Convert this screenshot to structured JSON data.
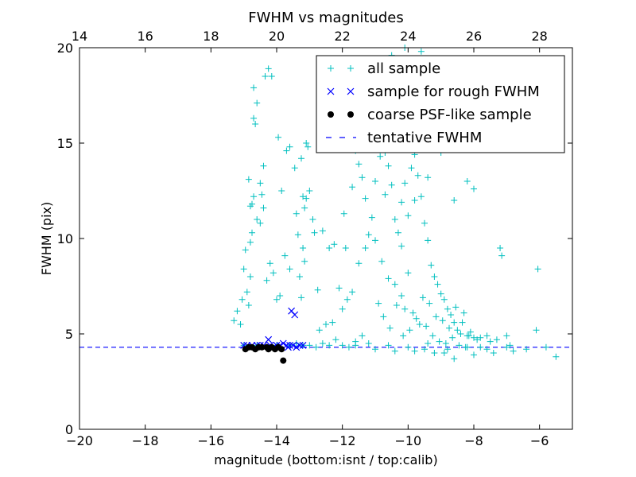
{
  "chart_data": {
    "type": "scatter",
    "title": "FWHM vs magnitudes",
    "xlabel": "magnitude (bottom:isnt / top:calib)",
    "ylabel": "FWHM (pix)",
    "xlim": [
      -20,
      -5
    ],
    "ylim": [
      0,
      20
    ],
    "x_ticks": [
      -20,
      -18,
      -16,
      -14,
      -12,
      -10,
      -8,
      -6
    ],
    "y_ticks": [
      0,
      5,
      10,
      15,
      20
    ],
    "top_axis": {
      "offset": 34,
      "ticks": [
        14,
        16,
        18,
        20,
        22,
        24,
        26,
        28
      ]
    },
    "legend_position": "top-right",
    "tentative_fwhm": 4.3,
    "colors": {
      "all": "#00bfbf",
      "rough": "#0000ff",
      "coarse": "#000000",
      "tentative": "#0000ff"
    },
    "series": [
      {
        "name": "all sample",
        "marker": "plus",
        "points": [
          [
            -15.3,
            5.7
          ],
          [
            -15.2,
            6.2
          ],
          [
            -15.1,
            5.5
          ],
          [
            -15.05,
            6.8
          ],
          [
            -15.0,
            8.4
          ],
          [
            -14.9,
            7.2
          ],
          [
            -14.85,
            6.5
          ],
          [
            -14.8,
            8.0
          ],
          [
            -14.95,
            9.4
          ],
          [
            -14.75,
            11.8
          ],
          [
            -14.7,
            12.2
          ],
          [
            -14.8,
            11.7
          ],
          [
            -14.85,
            13.1
          ],
          [
            -14.75,
            10.3
          ],
          [
            -14.8,
            9.8
          ],
          [
            -14.6,
            11.0
          ],
          [
            -14.5,
            12.9
          ],
          [
            -14.4,
            13.8
          ],
          [
            -14.7,
            16.3
          ],
          [
            -14.6,
            17.1
          ],
          [
            -14.65,
            16.0
          ],
          [
            -14.7,
            17.9
          ],
          [
            -14.35,
            18.5
          ],
          [
            -14.25,
            18.9
          ],
          [
            -14.15,
            18.5
          ],
          [
            -14.45,
            12.3
          ],
          [
            -14.4,
            11.6
          ],
          [
            -14.5,
            10.8
          ],
          [
            -14.2,
            8.7
          ],
          [
            -14.1,
            8.2
          ],
          [
            -14.3,
            7.8
          ],
          [
            -14.0,
            6.8
          ],
          [
            -13.9,
            7.0
          ],
          [
            -13.85,
            12.5
          ],
          [
            -13.95,
            15.3
          ],
          [
            -13.7,
            14.6
          ],
          [
            -13.6,
            14.8
          ],
          [
            -13.75,
            9.1
          ],
          [
            -13.6,
            8.4
          ],
          [
            -13.45,
            13.7
          ],
          [
            -13.25,
            14.2
          ],
          [
            -13.2,
            12.2
          ],
          [
            -13.15,
            11.6
          ],
          [
            -13.1,
            12.1
          ],
          [
            -13.4,
            11.3
          ],
          [
            -13.35,
            10.2
          ],
          [
            -13.2,
            9.5
          ],
          [
            -13.15,
            8.8
          ],
          [
            -13.3,
            8.0
          ],
          [
            -13.25,
            6.9
          ],
          [
            -13.0,
            12.5
          ],
          [
            -12.9,
            11.0
          ],
          [
            -12.85,
            10.3
          ],
          [
            -12.6,
            10.4
          ],
          [
            -12.4,
            9.5
          ],
          [
            -12.25,
            9.7
          ],
          [
            -13.1,
            15.0
          ],
          [
            -13.05,
            14.8
          ],
          [
            -12.75,
            7.3
          ],
          [
            -12.7,
            5.2
          ],
          [
            -12.5,
            5.5
          ],
          [
            -12.3,
            5.6
          ],
          [
            -12.1,
            7.4
          ],
          [
            -11.95,
            11.3
          ],
          [
            -11.9,
            9.5
          ],
          [
            -11.7,
            12.7
          ],
          [
            -11.6,
            14.6
          ],
          [
            -11.5,
            13.9
          ],
          [
            -11.4,
            13.2
          ],
          [
            -11.3,
            12.1
          ],
          [
            -11.2,
            10.2
          ],
          [
            -11.1,
            11.1
          ],
          [
            -11.0,
            13.0
          ],
          [
            -10.85,
            14.3
          ],
          [
            -10.7,
            14.5
          ],
          [
            -10.6,
            13.8
          ],
          [
            -10.5,
            12.8
          ],
          [
            -10.4,
            11.0
          ],
          [
            -10.3,
            10.3
          ],
          [
            -10.2,
            9.6
          ],
          [
            -10.1,
            12.9
          ],
          [
            -10.0,
            11.2
          ],
          [
            -9.9,
            13.7
          ],
          [
            -9.8,
            14.4
          ],
          [
            -9.7,
            13.3
          ],
          [
            -9.6,
            12.2
          ],
          [
            -9.5,
            10.8
          ],
          [
            -9.4,
            9.9
          ],
          [
            -9.3,
            8.6
          ],
          [
            -9.2,
            8.0
          ],
          [
            -9.1,
            7.6
          ],
          [
            -9.0,
            7.1
          ],
          [
            -8.9,
            6.8
          ],
          [
            -8.8,
            6.3
          ],
          [
            -8.7,
            6.0
          ],
          [
            -8.6,
            5.6
          ],
          [
            -8.5,
            5.2
          ],
          [
            -8.4,
            5.0
          ],
          [
            -8.3,
            6.1
          ],
          [
            -8.2,
            4.9
          ],
          [
            -8.1,
            5.1
          ],
          [
            -8.0,
            4.8
          ],
          [
            -7.9,
            4.7
          ],
          [
            -7.8,
            4.8
          ],
          [
            -7.6,
            4.9
          ],
          [
            -7.5,
            4.6
          ],
          [
            -7.3,
            4.7
          ],
          [
            -7.2,
            9.5
          ],
          [
            -7.15,
            9.1
          ],
          [
            -7.0,
            4.9
          ],
          [
            -6.9,
            4.4
          ],
          [
            -6.1,
            5.2
          ],
          [
            -6.05,
            8.4
          ],
          [
            -5.5,
            3.8
          ],
          [
            -10.8,
            8.8
          ],
          [
            -10.6,
            7.9
          ],
          [
            -10.4,
            7.6
          ],
          [
            -10.2,
            7.0
          ],
          [
            -10.1,
            6.3
          ],
          [
            -10.0,
            8.2
          ],
          [
            -9.85,
            6.1
          ],
          [
            -9.75,
            5.8
          ],
          [
            -9.65,
            5.5
          ],
          [
            -9.55,
            6.9
          ],
          [
            -9.45,
            5.4
          ],
          [
            -9.35,
            6.6
          ],
          [
            -9.25,
            4.9
          ],
          [
            -9.15,
            5.9
          ],
          [
            -9.05,
            4.6
          ],
          [
            -8.95,
            5.7
          ],
          [
            -8.85,
            4.5
          ],
          [
            -8.75,
            5.3
          ],
          [
            -8.65,
            4.8
          ],
          [
            -8.55,
            6.4
          ],
          [
            -8.45,
            4.4
          ],
          [
            -8.35,
            5.6
          ],
          [
            -8.25,
            4.3
          ],
          [
            -8.15,
            4.9
          ],
          [
            -9.6,
            19.8
          ],
          [
            -9.0,
            18.6
          ],
          [
            -8.4,
            15.9
          ],
          [
            -8.5,
            14.8
          ],
          [
            -8.2,
            13.0
          ],
          [
            -8.0,
            12.6
          ],
          [
            -8.6,
            12.0
          ],
          [
            -10.1,
            20.0
          ],
          [
            -10.5,
            19.6
          ],
          [
            -10.9,
            16.8
          ],
          [
            -11.2,
            15.8
          ],
          [
            -10.3,
            17.3
          ],
          [
            -9.3,
            17.9
          ],
          [
            -9.1,
            16.5
          ],
          [
            -8.8,
            15.3
          ],
          [
            -9.0,
            14.5
          ],
          [
            -9.4,
            13.2
          ],
          [
            -9.8,
            12.0
          ],
          [
            -10.2,
            11.9
          ],
          [
            -10.7,
            12.3
          ],
          [
            -11.0,
            9.9
          ],
          [
            -11.3,
            9.5
          ],
          [
            -11.5,
            8.7
          ],
          [
            -11.7,
            7.2
          ],
          [
            -11.85,
            6.8
          ],
          [
            -12.0,
            6.3
          ],
          [
            -10.9,
            6.6
          ],
          [
            -10.75,
            5.9
          ],
          [
            -10.55,
            5.3
          ],
          [
            -10.35,
            6.5
          ],
          [
            -10.15,
            4.9
          ],
          [
            -9.95,
            5.2
          ],
          [
            -11.4,
            4.9
          ],
          [
            -11.6,
            4.6
          ],
          [
            -12.2,
            4.7
          ],
          [
            -12.6,
            4.5
          ],
          [
            -13.0,
            4.4
          ],
          [
            -13.6,
            4.4
          ],
          [
            -14.0,
            4.4
          ],
          [
            -14.6,
            4.4
          ],
          [
            -15.0,
            4.4
          ],
          [
            -12.4,
            4.4
          ],
          [
            -11.8,
            4.3
          ],
          [
            -11.2,
            4.5
          ],
          [
            -10.6,
            4.4
          ],
          [
            -10.0,
            4.3
          ],
          [
            -9.4,
            4.5
          ],
          [
            -8.8,
            4.2
          ],
          [
            -8.2,
            4.3
          ],
          [
            -7.6,
            4.2
          ],
          [
            -7.0,
            4.3
          ],
          [
            -6.4,
            4.2
          ],
          [
            -5.8,
            4.3
          ],
          [
            -6.8,
            4.1
          ],
          [
            -7.4,
            4.0
          ],
          [
            -8.0,
            3.9
          ],
          [
            -8.6,
            3.7
          ],
          [
            -9.2,
            4.0
          ],
          [
            -9.8,
            4.1
          ],
          [
            -10.4,
            4.1
          ],
          [
            -11.0,
            4.2
          ],
          [
            -11.6,
            4.4
          ],
          [
            -12.8,
            4.3
          ],
          [
            -13.2,
            4.4
          ],
          [
            -13.4,
            4.5
          ],
          [
            -12.0,
            4.4
          ],
          [
            -7.8,
            4.3
          ],
          [
            -8.9,
            4.0
          ],
          [
            -9.5,
            4.2
          ]
        ]
      },
      {
        "name": "sample for rough FWHM",
        "marker": "x",
        "points": [
          [
            -15.0,
            4.4
          ],
          [
            -14.9,
            4.4
          ],
          [
            -14.75,
            4.4
          ],
          [
            -14.6,
            4.4
          ],
          [
            -14.5,
            4.4
          ],
          [
            -14.4,
            4.4
          ],
          [
            -14.25,
            4.7
          ],
          [
            -14.2,
            4.4
          ],
          [
            -14.1,
            4.3
          ],
          [
            -14.0,
            4.4
          ],
          [
            -13.9,
            4.4
          ],
          [
            -13.8,
            4.5
          ],
          [
            -13.7,
            4.4
          ],
          [
            -13.55,
            6.2
          ],
          [
            -13.45,
            6.0
          ],
          [
            -13.5,
            4.4
          ],
          [
            -13.4,
            4.3
          ],
          [
            -13.3,
            4.4
          ],
          [
            -13.2,
            4.4
          ],
          [
            -13.6,
            4.4
          ],
          [
            -13.65,
            4.3
          ]
        ]
      },
      {
        "name": "coarse PSF-like sample",
        "marker": "circle",
        "points": [
          [
            -14.95,
            4.2
          ],
          [
            -14.85,
            4.3
          ],
          [
            -14.75,
            4.3
          ],
          [
            -14.65,
            4.2
          ],
          [
            -14.55,
            4.3
          ],
          [
            -14.45,
            4.3
          ],
          [
            -14.3,
            4.3
          ],
          [
            -14.15,
            4.3
          ],
          [
            -14.05,
            4.2
          ],
          [
            -13.95,
            4.3
          ],
          [
            -13.85,
            4.2
          ],
          [
            -13.8,
            3.6
          ],
          [
            -14.25,
            4.2
          ]
        ]
      }
    ],
    "lines": [
      {
        "name": "tentative FWHM",
        "style": "dashed",
        "y": 4.3
      }
    ]
  }
}
